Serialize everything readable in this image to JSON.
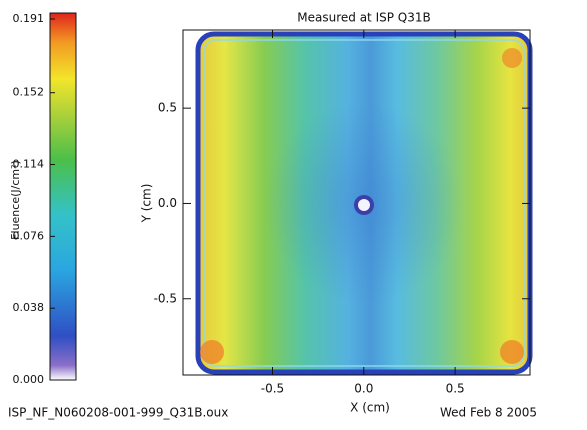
{
  "chart_data": {
    "type": "heatmap",
    "title": "Measured at ISP Q31B",
    "xlabel": "X (cm)",
    "ylabel": "Y (cm)",
    "xlim": [
      -0.99,
      0.91
    ],
    "ylim": [
      -0.9,
      0.91
    ],
    "xticks": [
      -0.5,
      {
        "value": 0,
        "label": "0.0"
      },
      0.5
    ],
    "yticks": [
      -0.5,
      {
        "value": 0,
        "label": "0.0"
      },
      0.5
    ],
    "colorbar": {
      "label": "Fluence(J/cm²)",
      "lim": [
        0,
        0.191
      ],
      "ticks": [
        {
          "value": 0,
          "label": "0.000"
        },
        0.038,
        0.076,
        0.114,
        0.152,
        0.191
      ]
    },
    "annotations": [
      "ISP_NF_N060208-001-999_Q31B.oux",
      "Wed Feb  8 2005"
    ]
  }
}
